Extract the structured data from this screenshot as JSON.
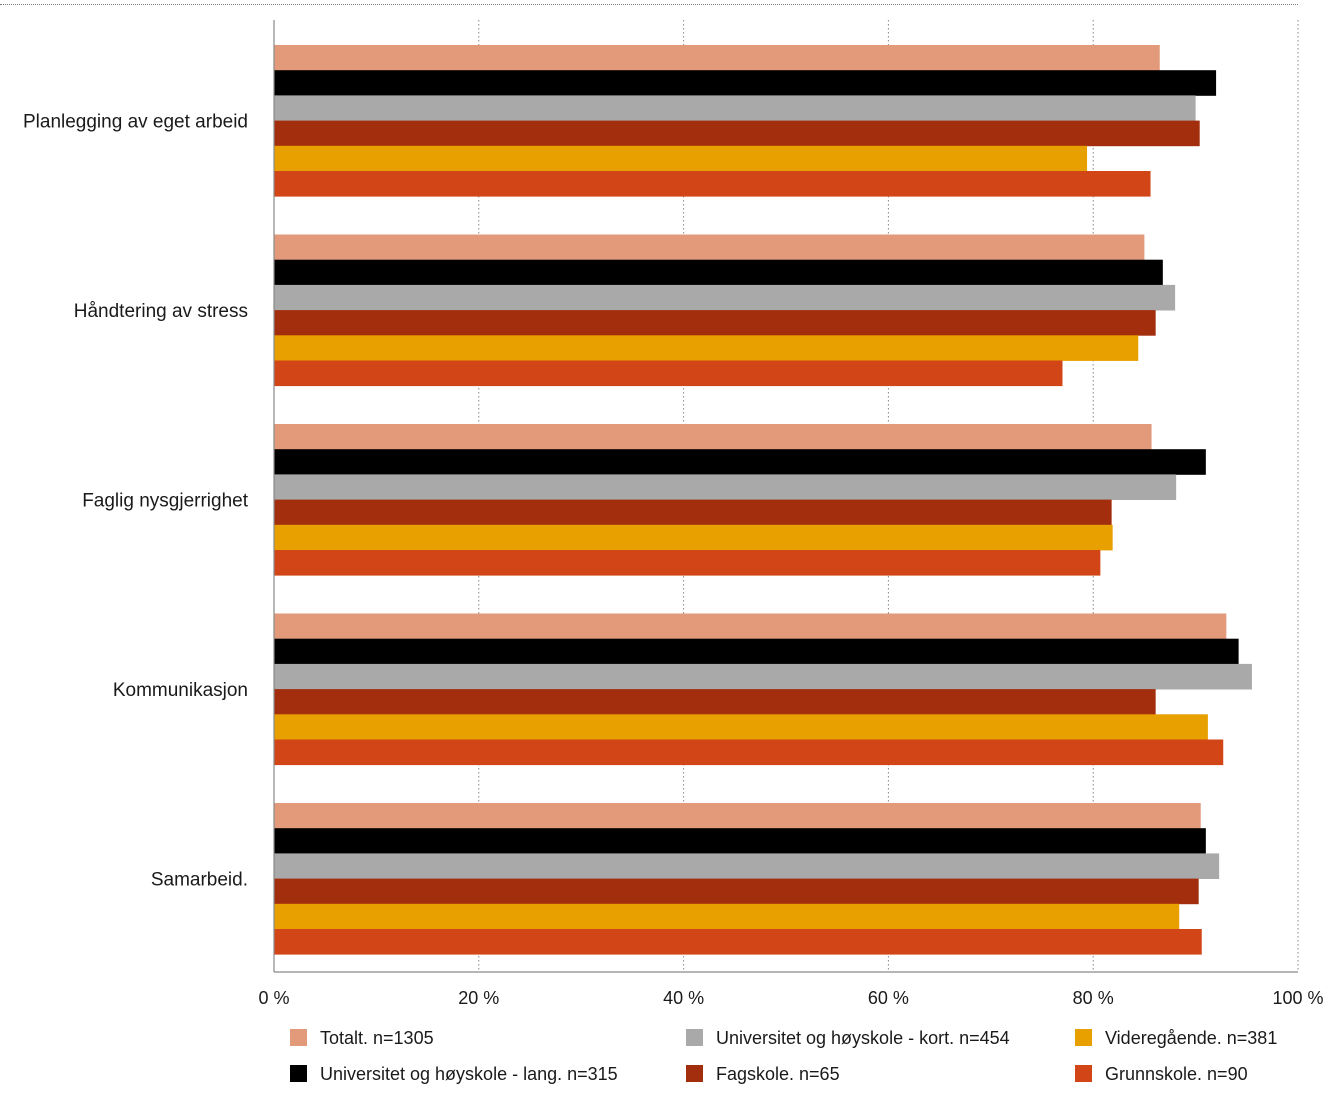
{
  "chart_data": {
    "type": "bar",
    "orientation": "horizontal",
    "categories": [
      "Planlegging av eget arbeid",
      "Håndtering av stress",
      "Faglig nysgjerrighet",
      "Kommunikasjon",
      "Samarbeid."
    ],
    "series": [
      {
        "name": "Totalt. n=1305",
        "color": "#e39a7b",
        "values": [
          86.5,
          85,
          85.7,
          93,
          90.5
        ]
      },
      {
        "name": "Universitet og høyskole - lang. n=315",
        "color": "#000000",
        "values": [
          92,
          86.8,
          91,
          94.2,
          91
        ]
      },
      {
        "name": "Universitet og høyskole - kort. n=454",
        "color": "#a9a9a9",
        "values": [
          90,
          88,
          88.1,
          95.5,
          92.3
        ]
      },
      {
        "name": "Fagskole. n=65",
        "color": "#a22e0e",
        "values": [
          90.4,
          86.1,
          81.8,
          86.1,
          90.3
        ]
      },
      {
        "name": "Videregående. n=381",
        "color": "#e89f00",
        "values": [
          79.4,
          84.4,
          81.9,
          91.2,
          88.4
        ]
      },
      {
        "name": "Grunnskole. n=90",
        "color": "#d24517",
        "values": [
          85.6,
          77,
          80.7,
          92.7,
          90.6
        ]
      }
    ],
    "xlim": [
      0,
      100
    ],
    "xticks": [
      0,
      20,
      40,
      60,
      80,
      100
    ],
    "xtick_labels": [
      "0 %",
      "20 %",
      "40 %",
      "60 %",
      "80 %",
      "100 %"
    ],
    "grid": "vertical-dotted",
    "legend_position": "bottom",
    "legend_columns": 3
  }
}
